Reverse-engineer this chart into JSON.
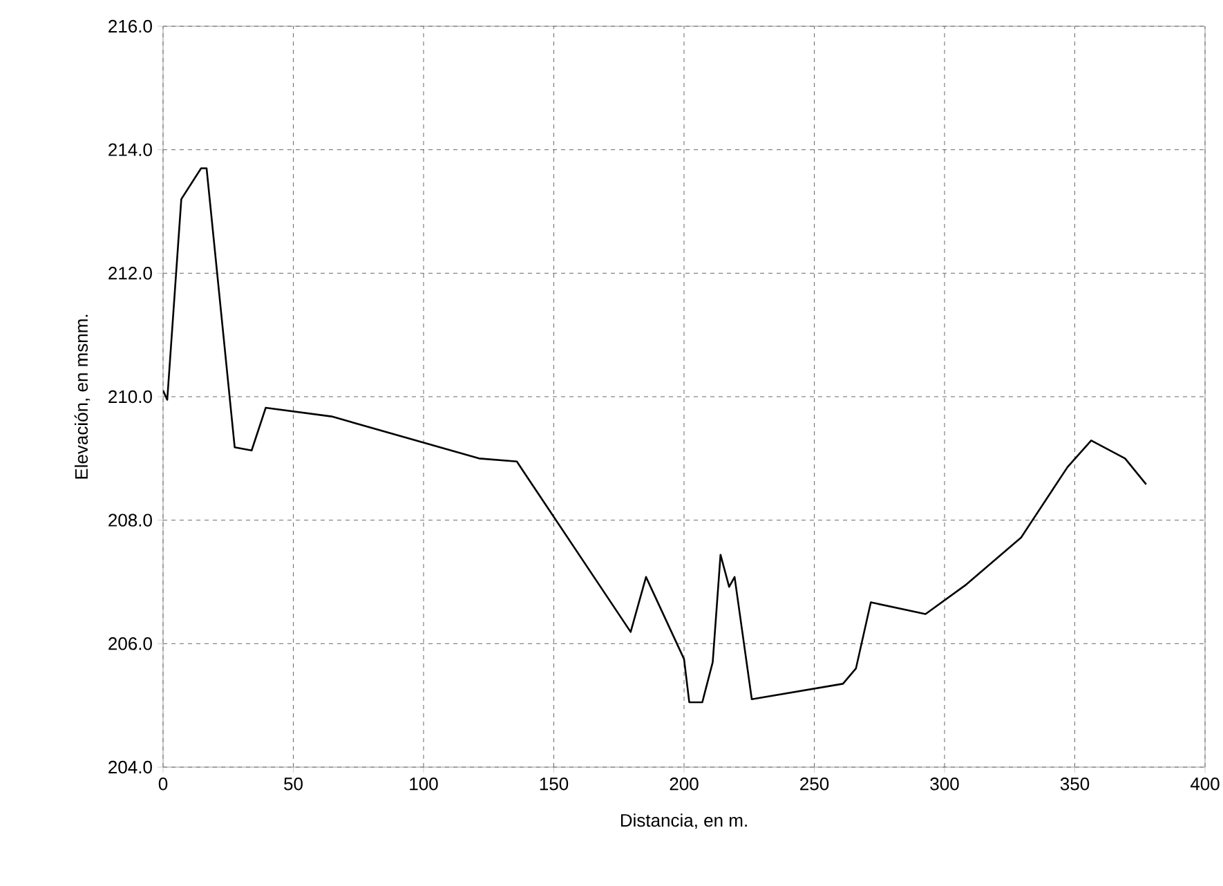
{
  "chart_data": {
    "type": "line",
    "xlabel": "Distancia, en m.",
    "ylabel": "Elevación, en msnm.",
    "xlim": [
      0,
      400
    ],
    "xticks": [
      0,
      50,
      100,
      150,
      200,
      250,
      300,
      350,
      400
    ],
    "ylim": [
      204,
      216
    ],
    "yticks": [
      {
        "value": 204,
        "label": "204.0"
      },
      {
        "value": 206,
        "label": "206.0"
      },
      {
        "value": 208,
        "label": "208.0"
      },
      {
        "value": 210,
        "label": "210.0"
      },
      {
        "value": 212,
        "label": "212.0"
      },
      {
        "value": 214,
        "label": "214.0"
      },
      {
        "value": 216,
        "label": "216.0"
      }
    ],
    "grid": true,
    "marker": "none",
    "line_style": "solid",
    "series": [
      {
        "color": "#000000",
        "x": [
          0,
          1.6,
          7,
          14.6,
          16.7,
          27.5,
          34,
          39.4,
          64.7,
          121.3,
          135.8,
          179.5,
          185.4,
          200,
          202,
          207,
          211,
          214,
          217.3,
          219.4,
          226,
          261,
          266,
          271.7,
          292.7,
          308.4,
          329.4,
          347.2,
          356.3,
          369.3,
          377.4
        ],
        "values": [
          210.1,
          209.95,
          213.2,
          213.7,
          213.7,
          209.18,
          209.13,
          209.82,
          209.68,
          209.0,
          208.95,
          206.19,
          207.08,
          205.75,
          205.05,
          205.05,
          205.7,
          207.44,
          206.92,
          207.08,
          205.1,
          205.35,
          205.6,
          206.67,
          206.48,
          206.96,
          207.72,
          208.86,
          209.29,
          209.0,
          208.58
        ]
      }
    ]
  }
}
